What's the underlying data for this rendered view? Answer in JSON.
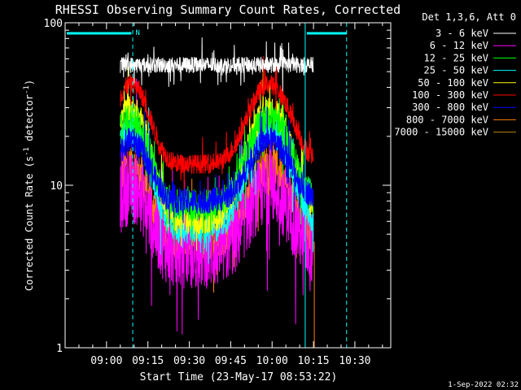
{
  "chart_data": {
    "type": "line",
    "title": "RHESSI Observing Summary Count Rates, Corrected",
    "xlabel": "Start Time (23-May-17 08:53:22)",
    "ylabel_main": "Corrected Count Rate (s",
    "ylabel_sup1": "-1",
    "ylabel_mid": " detector",
    "ylabel_sup2": "-1",
    "ylabel_end": ")",
    "yscale": "log",
    "ylim": [
      1,
      100
    ],
    "xlim_minutes": [
      -15,
      103
    ],
    "x_ticks": [
      {
        "label": "09:00",
        "min": 0
      },
      {
        "label": "09:15",
        "min": 15
      },
      {
        "label": "09:30",
        "min": 30
      },
      {
        "label": "09:45",
        "min": 45
      },
      {
        "label": "10:00",
        "min": 60
      },
      {
        "label": "10:15",
        "min": 75
      },
      {
        "label": "10:30",
        "min": 90
      }
    ],
    "y_ticks": [
      {
        "label": "1",
        "value": 1
      },
      {
        "label": "10",
        "value": 10
      },
      {
        "label": "100",
        "value": 100
      }
    ],
    "legend_header": "Det 1,3,6, Att 0",
    "series": [
      {
        "name": "3 - 6 keV",
        "color": "#ffffff",
        "level": "flat",
        "base": 55,
        "amp": 0,
        "noise": 0.05
      },
      {
        "name": "6 - 12 keV",
        "color": "#ff00ff",
        "level": "dip",
        "base": 9.5,
        "low": 3.8,
        "noise": 0.22
      },
      {
        "name": "12 - 25 keV",
        "color": "#00ff00",
        "level": "dip",
        "base": 26,
        "low": 7.5,
        "noise": 0.1
      },
      {
        "name": "25 - 50 keV",
        "color": "#00ffff",
        "level": "dip",
        "base": 22,
        "low": 5.5,
        "noise": 0.1
      },
      {
        "name": "50 - 100 keV",
        "color": "#ffff00",
        "level": "dip",
        "base": 30,
        "low": 6.0,
        "noise": 0.08
      },
      {
        "name": "100 - 300 keV",
        "color": "#ff0000",
        "level": "dip",
        "base": 42,
        "low": 13.5,
        "noise": 0.06
      },
      {
        "name": "300 - 800 keV",
        "color": "#0000ff",
        "level": "dip",
        "base": 19,
        "low": 8.0,
        "noise": 0.08
      },
      {
        "name": "800 - 7000 keV",
        "color": "#ff7f00",
        "level": "dip",
        "base": 13.5,
        "low": 4.6,
        "noise": 0.12
      },
      {
        "name": "7000 - 15000 keV",
        "color": "#b8860b",
        "level": "none",
        "base": 0,
        "low": 0,
        "noise": 0
      }
    ],
    "annotation_marker": "N",
    "vertical_markers_minutes": [
      -15,
      9.5,
      72,
      87
    ],
    "data_window_minutes": [
      5,
      75
    ],
    "attenuator_bars": [
      [
        -15,
        9
      ],
      [
        72,
        87
      ]
    ]
  },
  "footer": {
    "timestamp": "1-Sep-2022 02:32"
  }
}
